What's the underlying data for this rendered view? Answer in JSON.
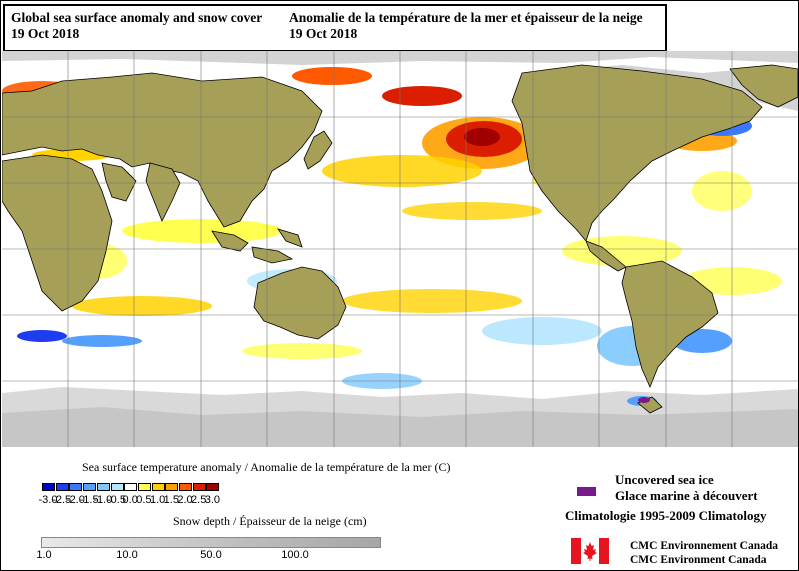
{
  "header": {
    "title_en": "Global sea surface anomaly and snow cover",
    "date_en": "19 Oct 2018",
    "title_fr": "Anomalie de la température de la mer et épaisseur de la neige",
    "date_fr": "19 Oct 2018"
  },
  "legend": {
    "sst_title": "Sea surface temperature anomaly / Anomalie de la température de la mer (C)",
    "sst_ticks": [
      "-3.0",
      "-2.5",
      "-2.0",
      "-1.5",
      "-1.0",
      "-0.5",
      "0.0",
      "0.5",
      "1.0",
      "1.5",
      "2.0",
      "2.5",
      "3.0"
    ],
    "sst_colors": [
      "#0000c8",
      "#1e3cf0",
      "#3c78ff",
      "#55a0ff",
      "#7ec8ff",
      "#b4e6ff",
      "#ffffff",
      "#ffff50",
      "#ffd200",
      "#ffa000",
      "#ff5a00",
      "#dc1e00",
      "#a00000"
    ],
    "snow_title": "Snow depth / Épaisseur de la neige (cm)",
    "snow_ticks": [
      "1.0",
      "10.0",
      "50.0",
      "100.0"
    ],
    "ice_en": "Uncovered sea ice",
    "ice_fr": "Glace marine à découvert",
    "ice_color": "#7a1a8a",
    "climatology": "Climatologie 1995-2009 Climatology",
    "agency_fr": "CMC Environnement Canada",
    "agency_en": "CMC Environment Canada"
  },
  "colors": {
    "land": "#a59f57",
    "snow": "#d3d3d3",
    "flag_red": "#e5141e"
  }
}
